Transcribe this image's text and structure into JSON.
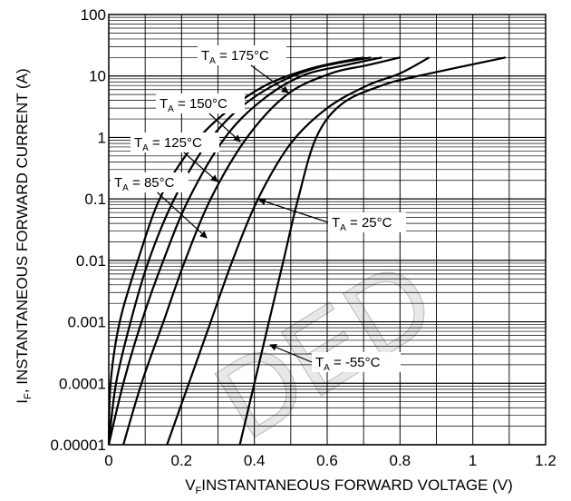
{
  "chart_data": {
    "type": "line",
    "xlabel": "INSTANTANEOUS FORWARD VOLTAGE (V)",
    "xlabel_symbol": "V",
    "xlabel_sub": "F",
    "ylabel": ", INSTANTANEOUS FORWARD CURRENT (A)",
    "ylabel_symbol": "I",
    "ylabel_sub": "F",
    "xlim": [
      0,
      1.2
    ],
    "ylim": [
      1e-05,
      100
    ],
    "y_scale": "log",
    "grid": true,
    "x_ticks": [
      0,
      0.2,
      0.4,
      0.6,
      0.8,
      1,
      1.2
    ],
    "x_tick_labels": [
      "0",
      "0.2",
      "0.4",
      "0.6",
      "0.8",
      "1",
      "1.2"
    ],
    "y_ticks": [
      1e-05,
      0.0001,
      0.001,
      0.01,
      0.1,
      1,
      10,
      100
    ],
    "y_tick_labels": [
      "0.00001",
      "0.0001",
      "0.001",
      "0.01",
      "0.1",
      "1",
      "10",
      "100"
    ],
    "series": [
      {
        "name": "T_A = 175°C",
        "points": [
          [
            0.0,
            1e-05
          ],
          [
            0.005,
            0.0001
          ],
          [
            0.03,
            0.001
          ],
          [
            0.08,
            0.01
          ],
          [
            0.14,
            0.1
          ],
          [
            0.22,
            0.6
          ],
          [
            0.3,
            2
          ],
          [
            0.42,
            6.5
          ],
          [
            0.55,
            13
          ],
          [
            0.7,
            20
          ]
        ]
      },
      {
        "name": "T_A = 150°C",
        "points": [
          [
            0.0,
            1e-05
          ],
          [
            0.02,
            0.0001
          ],
          [
            0.06,
            0.001
          ],
          [
            0.11,
            0.01
          ],
          [
            0.18,
            0.1
          ],
          [
            0.27,
            0.8
          ],
          [
            0.36,
            3
          ],
          [
            0.47,
            8
          ],
          [
            0.58,
            14
          ],
          [
            0.72,
            20
          ]
        ]
      },
      {
        "name": "T_A = 125°C",
        "points": [
          [
            0.0,
            1e-05
          ],
          [
            0.04,
            0.0001
          ],
          [
            0.09,
            0.001
          ],
          [
            0.15,
            0.01
          ],
          [
            0.22,
            0.1
          ],
          [
            0.32,
            1
          ],
          [
            0.42,
            4
          ],
          [
            0.53,
            10
          ],
          [
            0.65,
            15
          ],
          [
            0.75,
            20
          ]
        ]
      },
      {
        "name": "T_A = 85°C",
        "points": [
          [
            0.04,
            1e-05
          ],
          [
            0.09,
            0.0001
          ],
          [
            0.15,
            0.001
          ],
          [
            0.21,
            0.01
          ],
          [
            0.28,
            0.1
          ],
          [
            0.38,
            1
          ],
          [
            0.49,
            5
          ],
          [
            0.61,
            11
          ],
          [
            0.71,
            15
          ],
          [
            0.8,
            20
          ]
        ]
      },
      {
        "name": "T_A = 25°C",
        "points": [
          [
            0.16,
            1e-05
          ],
          [
            0.22,
            0.0001
          ],
          [
            0.28,
            0.001
          ],
          [
            0.34,
            0.01
          ],
          [
            0.41,
            0.1
          ],
          [
            0.5,
            0.8
          ],
          [
            0.6,
            3
          ],
          [
            0.71,
            7
          ],
          [
            0.8,
            11
          ],
          [
            0.88,
            20
          ]
        ]
      },
      {
        "name": "T_A = -55°C",
        "points": [
          [
            0.36,
            1e-05
          ],
          [
            0.4,
            0.0001
          ],
          [
            0.44,
            0.001
          ],
          [
            0.48,
            0.01
          ],
          [
            0.52,
            0.1
          ],
          [
            0.57,
            1
          ],
          [
            0.64,
            3.5
          ],
          [
            0.75,
            7
          ],
          [
            0.85,
            10
          ],
          [
            1.09,
            20
          ]
        ]
      }
    ],
    "annotations": [
      {
        "symbol": "T",
        "sub": "A",
        "text": " = 175°C",
        "series": "T_A = 175°C"
      },
      {
        "symbol": "T",
        "sub": "A",
        "text": " = 150°C",
        "series": "T_A = 150°C"
      },
      {
        "symbol": "T",
        "sub": "A",
        "text": " = 125°C",
        "series": "T_A = 125°C"
      },
      {
        "symbol": "T",
        "sub": "A",
        "text": " = 85°C",
        "series": "T_A = 85°C"
      },
      {
        "symbol": "T",
        "sub": "A",
        "text": " = 25°C",
        "series": "T_A = 25°C"
      },
      {
        "symbol": "T",
        "sub": "A",
        "text": " = -55°C",
        "series": "T_A = -55°C"
      }
    ],
    "watermark": "NOT RECOMMENDED FOR NEW DESIGN"
  }
}
